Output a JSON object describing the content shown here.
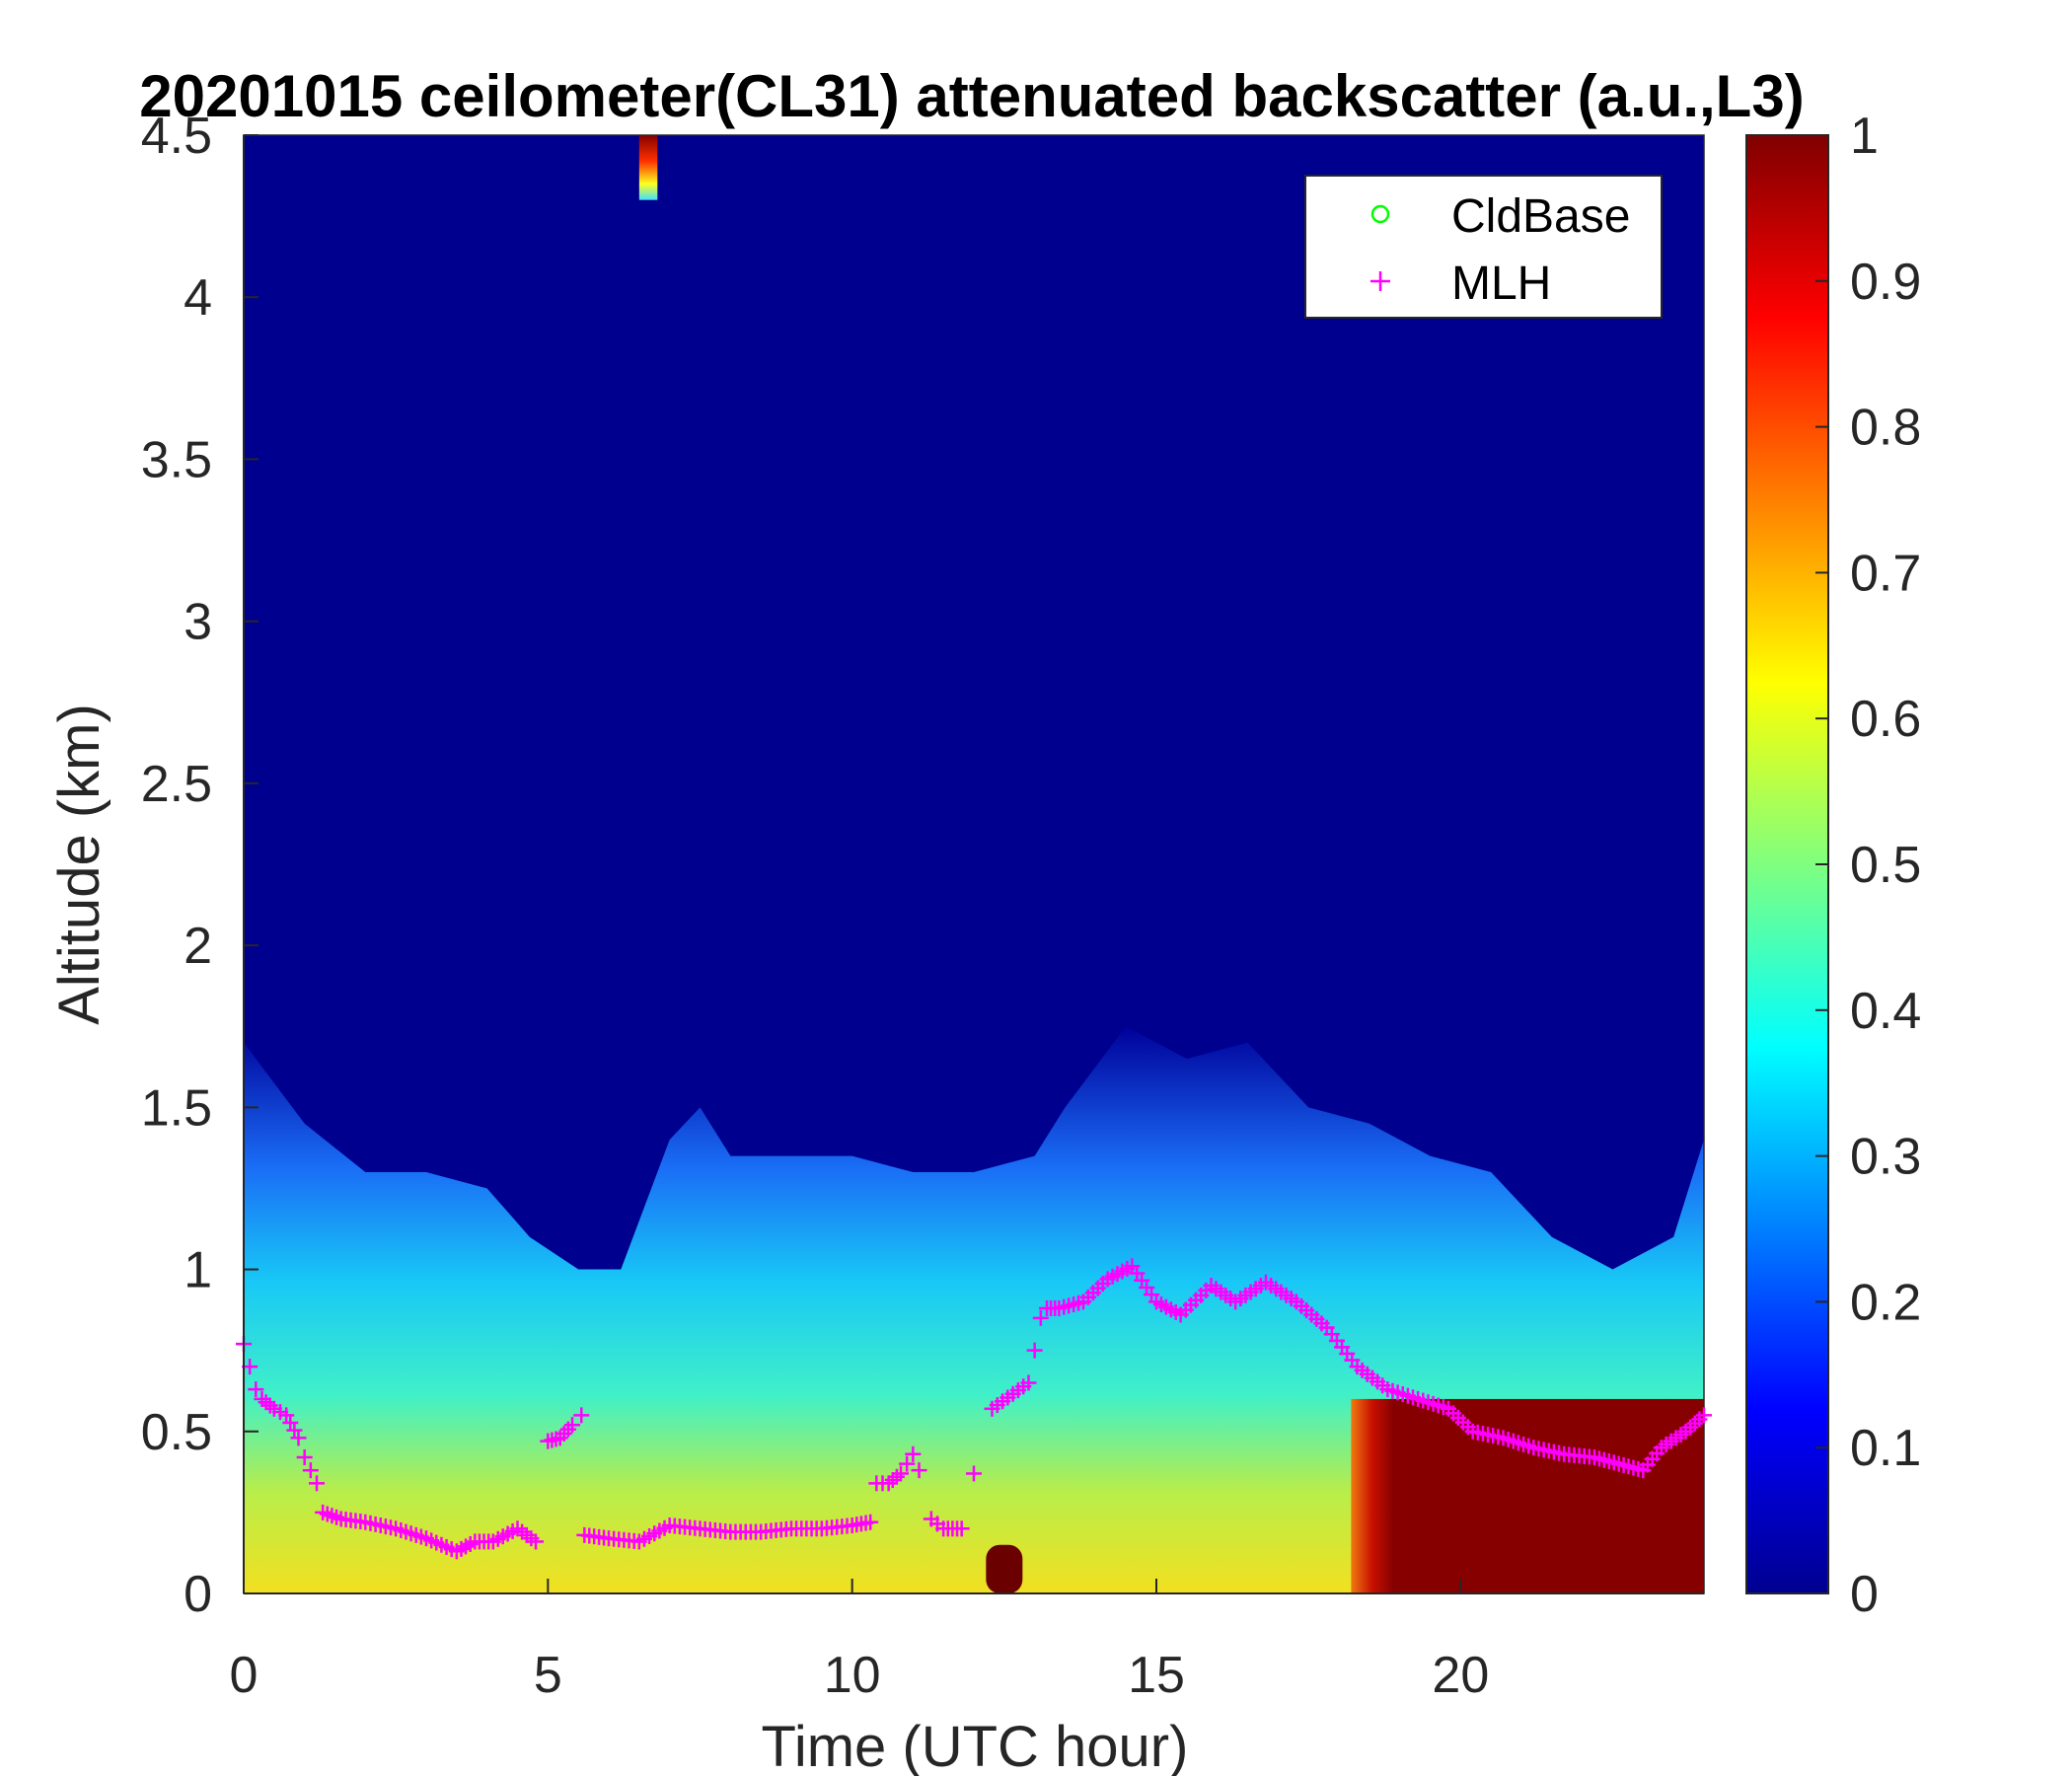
{
  "chart_data": {
    "type": "heatmap",
    "title": "20201015 ceilometer(CL31) attenuated backscatter (a.u.,L3)",
    "xlabel": "Time (UTC hour)",
    "ylabel": "Altitude (km)",
    "xlim": [
      0,
      24
    ],
    "ylim": [
      0,
      4.5
    ],
    "xticks": [
      "0",
      "5",
      "10",
      "15",
      "20"
    ],
    "yticks": [
      "0",
      "0.5",
      "1",
      "1.5",
      "2",
      "2.5",
      "3",
      "3.5",
      "4",
      "4.5"
    ],
    "colorbar": {
      "colormap": "jet",
      "clim": [
        0,
        1
      ],
      "ticks": [
        "0",
        "0.1",
        "0.2",
        "0.3",
        "0.4",
        "0.5",
        "0.6",
        "0.7",
        "0.8",
        "0.9",
        "1"
      ]
    },
    "legend": {
      "placement": "top-right",
      "entries": [
        {
          "name": "CldBase",
          "marker": "circle",
          "color": "#00ff00"
        },
        {
          "name": "MLH",
          "marker": "plus",
          "color": "#ff00ff"
        }
      ]
    },
    "aerosol_layer_top_km": {
      "x": [
        0,
        1,
        2,
        3,
        4,
        4.7,
        5.5,
        6.2,
        7,
        7.5,
        8,
        9,
        10,
        11,
        12,
        13,
        13.5,
        14.5,
        15.5,
        16.5,
        17.5,
        18.5,
        19.5,
        20.5,
        21.5,
        22.5,
        23.5,
        24
      ],
      "y": [
        1.7,
        1.45,
        1.3,
        1.3,
        1.25,
        1.1,
        1.0,
        1.0,
        1.4,
        1.5,
        1.35,
        1.35,
        1.35,
        1.3,
        1.3,
        1.35,
        1.5,
        1.75,
        1.65,
        1.7,
        1.5,
        1.45,
        1.35,
        1.3,
        1.1,
        1.0,
        1.1,
        1.4
      ]
    },
    "high_backscatter_regions": [
      {
        "x_range": [
          18.2,
          24
        ],
        "y_range": [
          0,
          0.6
        ],
        "value": 1.0
      },
      {
        "x_range": [
          6.5,
          6.8
        ],
        "y_range": [
          4.3,
          4.5
        ],
        "value": 1.0
      },
      {
        "x_range": [
          12.2,
          12.8
        ],
        "y_range": [
          0,
          0.15
        ],
        "value": 1.0
      }
    ],
    "MLH": {
      "x": [
        0,
        0.1,
        0.2,
        0.3,
        0.5,
        0.7,
        0.9,
        1.0,
        1.2,
        1.3,
        1.6,
        2.0,
        2.5,
        3.0,
        3.5,
        3.8,
        4.1,
        4.5,
        4.8,
        5.0,
        5.2,
        5.4,
        5.55,
        5.6,
        6.0,
        6.5,
        7.0,
        7.5,
        8.0,
        8.5,
        9.0,
        9.5,
        10.0,
        10.3,
        10.4,
        10.6,
        10.8,
        11.0,
        11.1,
        11.3,
        11.5,
        11.8,
        12.0,
        12.3,
        12.9,
        13.0,
        13.1,
        13.2,
        13.4,
        13.8,
        14.2,
        14.6,
        15.0,
        15.4,
        15.9,
        16.3,
        16.8,
        17.3,
        17.8,
        18.3,
        18.8,
        19.3,
        19.8,
        20.2,
        20.7,
        21.2,
        21.7,
        22.2,
        22.6,
        23.0,
        23.3,
        23.7,
        24.0
      ],
      "y": [
        0.77,
        0.7,
        0.63,
        0.6,
        0.57,
        0.55,
        0.48,
        0.42,
        0.34,
        0.25,
        0.23,
        0.22,
        0.2,
        0.17,
        0.13,
        0.16,
        0.16,
        0.2,
        0.16,
        0.47,
        0.48,
        0.52,
        0.55,
        0.18,
        0.17,
        0.16,
        0.21,
        0.2,
        0.19,
        0.19,
        0.2,
        0.2,
        0.21,
        0.22,
        0.34,
        0.34,
        0.37,
        0.43,
        0.38,
        0.23,
        0.2,
        0.2,
        0.37,
        0.57,
        0.65,
        0.75,
        0.85,
        0.88,
        0.88,
        0.9,
        0.97,
        1.01,
        0.9,
        0.86,
        0.95,
        0.9,
        0.96,
        0.9,
        0.82,
        0.7,
        0.63,
        0.6,
        0.57,
        0.5,
        0.48,
        0.45,
        0.43,
        0.42,
        0.4,
        0.38,
        0.45,
        0.5,
        0.55
      ]
    }
  }
}
